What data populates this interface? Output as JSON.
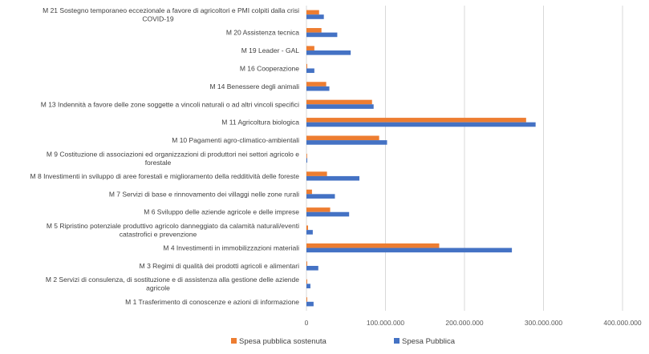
{
  "chart_data": {
    "type": "bar",
    "orientation": "horizontal",
    "categories": [
      "M 21 Sostegno temporaneo eccezionale a favore di agricoltori e PMI colpiti dalla crisi COVID-19",
      "M 20 Assistenza tecnica",
      "M 19 Leader - GAL",
      "M 16 Cooperazione",
      "M 14 Benessere degli animali",
      "M 13 Indennità a favore delle zone soggette a vincoli naturali o ad altri vincoli specifici",
      "M 11 Agricoltura biologica",
      "M 10 Pagamenti agro-climatico-ambientali",
      "M 9 Costituzione di associazioni ed organizzazioni di produttori nei settori agricolo e forestale",
      "M 8 Investimenti in sviluppo di aree forestali e miglioramento della redditività delle foreste",
      "M 7 Servizi di base e rinnovamento dei villaggi nelle zone rurali",
      "M 6 Sviluppo delle aziende agricole e delle imprese",
      "M 5 Ripristino potenziale produttivo agricolo danneggiato da calamità naturali/eventi catastrofici e prevenzione",
      "M 4 Investimenti in immobilizzazioni materiali",
      "M 3 Regimi di qualità dei prodotti agricoli e alimentari",
      "M 2 Servizi di consulenza, di sostituzione e di assistenza alla gestione delle aziende agricole",
      "M 1 Trasferimento di conoscenze e azioni di informazione"
    ],
    "category_lines": [
      [
        "M 21 Sostegno temporaneo eccezionale a favore di agricoltori e PMI colpiti dalla crisi",
        "COVID-19"
      ],
      [
        "M 20 Assistenza tecnica"
      ],
      [
        "M 19 Leader - GAL"
      ],
      [
        "M 16 Cooperazione"
      ],
      [
        "M 14 Benessere degli animali"
      ],
      [
        "M 13 Indennità a favore delle zone soggette a vincoli naturali o ad altri vincoli specifici"
      ],
      [
        "M 11 Agricoltura biologica"
      ],
      [
        "M 10 Pagamenti agro-climatico-ambientali"
      ],
      [
        "M 9 Costituzione di associazioni ed organizzazioni di produttori nei settori agricolo e",
        "forestale"
      ],
      [
        "M 8 Investimenti in sviluppo di aree forestali e miglioramento della redditività delle foreste"
      ],
      [
        "M 7 Servizi di base e rinnovamento dei villaggi nelle zone rurali"
      ],
      [
        "M 6 Sviluppo delle aziende agricole e delle imprese"
      ],
      [
        "M 5 Ripristino potenziale produttivo agricolo danneggiato da calamità naturali/eventi",
        "catastrofici e prevenzione"
      ],
      [
        "M 4 Investimenti in immobilizzazioni materiali"
      ],
      [
        "M 3 Regimi di qualità dei prodotti agricoli e alimentari"
      ],
      [
        "M 2 Servizi di consulenza, di sostituzione e di assistenza alla gestione delle aziende",
        "agricole"
      ],
      [
        "M 1 Trasferimento di conoscenze e azioni di informazione"
      ]
    ],
    "series": [
      {
        "name": "Spesa pubblica sostenuta",
        "color": "#ED7D31",
        "values": [
          16000000,
          19000000,
          10000000,
          1000000,
          25000000,
          83000000,
          278000000,
          92000000,
          500000,
          26000000,
          7000000,
          30000000,
          2000000,
          168000000,
          1000000,
          1000000,
          1000000
        ]
      },
      {
        "name": "Spesa Pubblica",
        "color": "#4472C4",
        "values": [
          22000000,
          39000000,
          56000000,
          10000000,
          29000000,
          85000000,
          290000000,
          102000000,
          1000000,
          67000000,
          36000000,
          54000000,
          8000000,
          260000000,
          15000000,
          5000000,
          9000000
        ]
      }
    ],
    "x_ticks": [
      "0",
      "100.000.000",
      "200.000.000",
      "300.000.000",
      "400.000.000"
    ],
    "xlim": [
      0,
      400000000
    ],
    "grid": true,
    "legend_position": "bottom",
    "title": "",
    "xlabel": "",
    "ylabel": ""
  }
}
